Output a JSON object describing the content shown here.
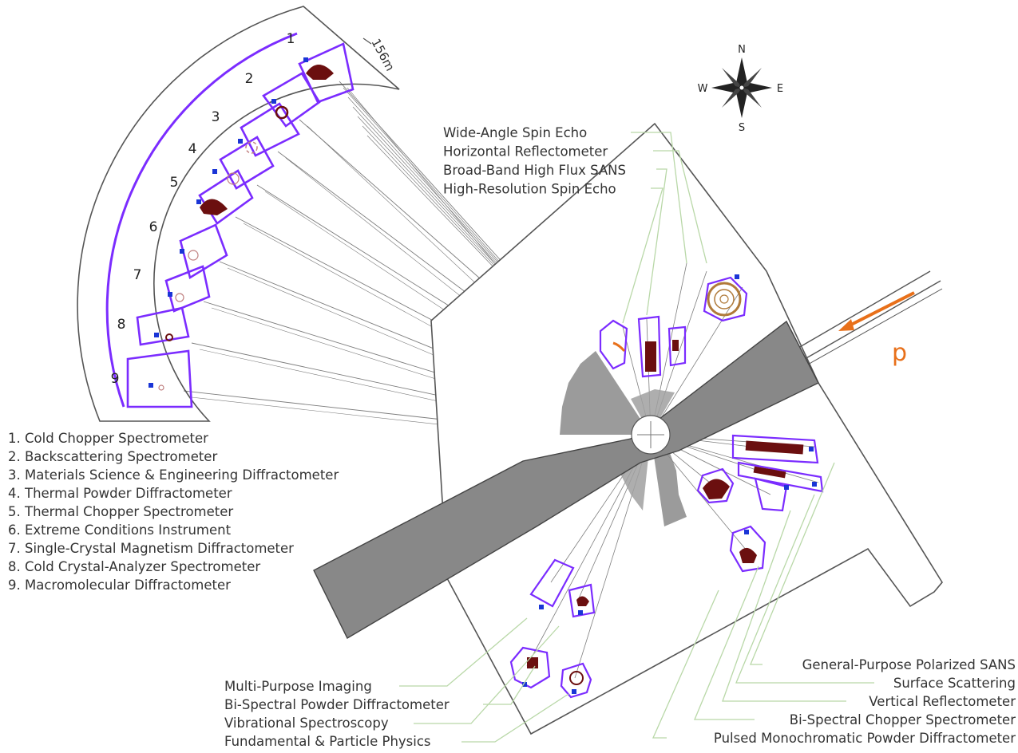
{
  "distance_label": "156m",
  "compass": {
    "n": "N",
    "s": "S",
    "e": "E",
    "w": "W"
  },
  "proton_label": "p",
  "arc_numbers": [
    "1",
    "2",
    "3",
    "4",
    "5",
    "6",
    "7",
    "8",
    "9"
  ],
  "legend": [
    "1. Cold Chopper Spectrometer",
    "2. Backscattering Spectrometer",
    "3. Materials Science & Engineering Diffractometer",
    "4. Thermal Powder Diffractometer",
    "5. Thermal Chopper Spectrometer",
    "6. Extreme Conditions Instrument",
    "7. Single-Crystal Magnetism Diffractometer",
    "8. Cold Crystal-Analyzer Spectrometer",
    "9. Macromolecular Diffractometer"
  ],
  "top_labels": [
    "Wide-Angle Spin Echo",
    "Horizontal Reflectometer",
    "Broad-Band High Flux SANS",
    "High-Resolution Spin Echo"
  ],
  "bottom_left_labels": [
    "Multi-Purpose Imaging",
    "Bi-Spectral Powder Diffractometer",
    "Vibrational Spectroscopy",
    "Fundamental & Particle Physics"
  ],
  "bottom_right_labels": [
    "General-Purpose Polarized SANS",
    "Surface Scattering",
    "Vertical Reflectometer",
    "Bi-Spectral Chopper Spectrometer",
    "Pulsed Monochromatic Powder Diffractometer"
  ],
  "colors": {
    "outline": "#555555",
    "instrument": "#7b2cff",
    "detector": "#6b0f0f",
    "target_block": "#8a8a8a",
    "monitor": "#1a35d6",
    "proton_arrow": "#e8701a",
    "guide_line": "#7d7d7d",
    "leader_line": "#b9d8a8"
  }
}
